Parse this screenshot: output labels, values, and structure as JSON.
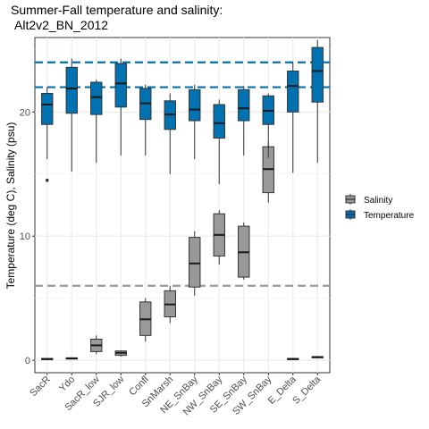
{
  "chart_data": {
    "type": "boxplot",
    "title": "Summer-Fall temperature and salinity:",
    "subtitle": "Alt2v2_BN_2012",
    "xlabel": "",
    "ylabel": "Temperature (deg C), Salinity (psu)",
    "ylim": [
      -1,
      26
    ],
    "yticks": [
      0,
      10,
      20
    ],
    "grid": true,
    "legend_position": "right",
    "categories": [
      "SacR",
      "Ydo",
      "SacR_low",
      "SJR_low",
      "Confl",
      "SnMarsh",
      "NE_SnBay",
      "NW_SnBay",
      "SE_SnBay",
      "SW_SnBay",
      "E_Delta",
      "S_Delta"
    ],
    "series": [
      {
        "name": "Salinity",
        "color": "#999999",
        "boxes": [
          {
            "category": "SacR",
            "whisker_low": 0.05,
            "q1": 0.05,
            "median": 0.1,
            "q3": 0.15,
            "whisker_high": 0.15,
            "outliers": []
          },
          {
            "category": "Ydo",
            "whisker_low": 0.1,
            "q1": 0.1,
            "median": 0.15,
            "q3": 0.2,
            "whisker_high": 0.2,
            "outliers": []
          },
          {
            "category": "SacR_low",
            "whisker_low": 0.5,
            "q1": 0.7,
            "median": 1.2,
            "q3": 1.7,
            "whisker_high": 2.0,
            "outliers": []
          },
          {
            "category": "SJR_low",
            "whisker_low": 0.3,
            "q1": 0.4,
            "median": 0.6,
            "q3": 0.75,
            "whisker_high": 0.8,
            "outliers": []
          },
          {
            "category": "Confl",
            "whisker_low": 1.5,
            "q1": 2.0,
            "median": 3.3,
            "q3": 4.7,
            "whisker_high": 5.0,
            "outliers": []
          },
          {
            "category": "SnMarsh",
            "whisker_low": 3.0,
            "q1": 3.5,
            "median": 4.5,
            "q3": 5.6,
            "whisker_high": 6.0,
            "outliers": []
          },
          {
            "category": "NE_SnBay",
            "whisker_low": 5.2,
            "q1": 5.9,
            "median": 7.8,
            "q3": 9.9,
            "whisker_high": 10.4,
            "outliers": []
          },
          {
            "category": "NW_SnBay",
            "whisker_low": 7.7,
            "q1": 8.4,
            "median": 10.1,
            "q3": 11.8,
            "whisker_high": 12.1,
            "outliers": []
          },
          {
            "category": "SE_SnBay",
            "whisker_low": 6.5,
            "q1": 6.7,
            "median": 8.7,
            "q3": 10.8,
            "whisker_high": 11.1,
            "outliers": []
          },
          {
            "category": "SW_SnBay",
            "whisker_low": 12.7,
            "q1": 13.5,
            "median": 15.4,
            "q3": 17.2,
            "whisker_high": 17.6,
            "outliers": []
          },
          {
            "category": "E_Delta",
            "whisker_low": 0.05,
            "q1": 0.05,
            "median": 0.1,
            "q3": 0.15,
            "whisker_high": 0.2,
            "outliers": []
          },
          {
            "category": "S_Delta",
            "whisker_low": 0.15,
            "q1": 0.2,
            "median": 0.25,
            "q3": 0.3,
            "whisker_high": 0.35,
            "outliers": []
          }
        ]
      },
      {
        "name": "Temperature",
        "color": "#0072b2",
        "boxes": [
          {
            "category": "SacR",
            "whisker_low": 16.2,
            "q1": 19.0,
            "median": 20.6,
            "q3": 21.5,
            "whisker_high": 22.0,
            "outliers": [
              14.5
            ]
          },
          {
            "category": "Ydo",
            "whisker_low": 15.2,
            "q1": 19.9,
            "median": 21.9,
            "q3": 23.6,
            "whisker_high": 24.3,
            "outliers": []
          },
          {
            "category": "SacR_low",
            "whisker_low": 15.9,
            "q1": 19.8,
            "median": 21.2,
            "q3": 22.4,
            "whisker_high": 22.6,
            "outliers": []
          },
          {
            "category": "SJR_low",
            "whisker_low": 16.5,
            "q1": 20.4,
            "median": 22.3,
            "q3": 23.9,
            "whisker_high": 24.3,
            "outliers": []
          },
          {
            "category": "Confl",
            "whisker_low": 16.5,
            "q1": 19.4,
            "median": 20.7,
            "q3": 21.9,
            "whisker_high": 22.2,
            "outliers": []
          },
          {
            "category": "SnMarsh",
            "whisker_low": 15.0,
            "q1": 18.6,
            "median": 19.8,
            "q3": 20.9,
            "whisker_high": 21.5,
            "outliers": []
          },
          {
            "category": "NE_SnBay",
            "whisker_low": 16.2,
            "q1": 19.3,
            "median": 20.2,
            "q3": 21.8,
            "whisker_high": 22.2,
            "outliers": []
          },
          {
            "category": "NW_SnBay",
            "whisker_low": 14.2,
            "q1": 17.9,
            "median": 19.1,
            "q3": 20.6,
            "whisker_high": 21.0,
            "outliers": []
          },
          {
            "category": "SE_SnBay",
            "whisker_low": 16.5,
            "q1": 19.3,
            "median": 20.3,
            "q3": 21.8,
            "whisker_high": 22.1,
            "outliers": []
          },
          {
            "category": "SW_SnBay",
            "whisker_low": 16.3,
            "q1": 19.0,
            "median": 20.1,
            "q3": 21.3,
            "whisker_high": 21.5,
            "outliers": []
          },
          {
            "category": "E_Delta",
            "whisker_low": 15.1,
            "q1": 20.0,
            "median": 22.1,
            "q3": 23.3,
            "whisker_high": 24.0,
            "outliers": []
          },
          {
            "category": "S_Delta",
            "whisker_low": 15.9,
            "q1": 20.8,
            "median": 23.3,
            "q3": 25.2,
            "whisker_high": 25.8,
            "outliers": []
          }
        ]
      }
    ],
    "reference_lines": [
      {
        "y": 24,
        "color": "#0072b2",
        "style": "dashed"
      },
      {
        "y": 22,
        "color": "#0072b2",
        "style": "dashed"
      },
      {
        "y": 6,
        "color": "#999999",
        "style": "dashed"
      }
    ]
  }
}
